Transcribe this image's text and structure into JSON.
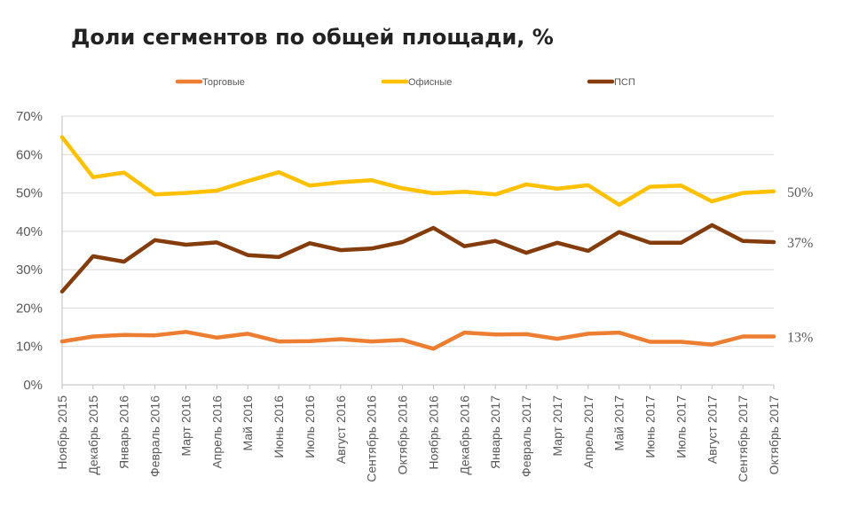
{
  "chart_data": {
    "type": "line",
    "title": "Доли сегментов по общей площади, %",
    "xlabel": "",
    "ylabel": "",
    "ylim": [
      0,
      70
    ],
    "yticks": [
      "0%",
      "10%",
      "20%",
      "30%",
      "40%",
      "50%",
      "60%",
      "70%"
    ],
    "grid": true,
    "legend": "top",
    "categories": [
      "Ноябрь 2015",
      "Декабрь 2015",
      "Январь 2016",
      "Февраль 2016",
      "Март 2016",
      "Апрель 2016",
      "Май 2016",
      "Июнь 2016",
      "Июль 2016",
      "Август 2016",
      "Сентябрь 2016",
      "Октябрь 2016",
      "Ноябрь 2016",
      "Декабрь 2016",
      "Январь 2017",
      "Февраль 2017",
      "Март 2017",
      "Апрель 2017",
      "Май 2017",
      "Июнь 2017",
      "Июль 2017",
      "Август 2017",
      "Сентябрь 2017",
      "Октябрь 2017"
    ],
    "series": [
      {
        "name": "Торговые",
        "color": "#ED7D31",
        "end_label": "13%",
        "values": [
          11.3,
          12.6,
          13.0,
          12.9,
          13.8,
          12.3,
          13.3,
          11.3,
          11.4,
          11.9,
          11.3,
          11.7,
          9.4,
          13.6,
          13.1,
          13.2,
          12.0,
          13.3,
          13.6,
          11.2,
          11.2,
          10.5,
          12.6,
          12.6
        ]
      },
      {
        "name": "Офисные",
        "color": "#FFC000",
        "end_label": "50%",
        "values": [
          64.5,
          54.1,
          55.3,
          49.6,
          50.0,
          50.6,
          53.1,
          55.4,
          51.9,
          52.8,
          53.3,
          51.2,
          49.9,
          50.3,
          49.6,
          52.2,
          51.1,
          52.0,
          46.9,
          51.6,
          51.9,
          47.8,
          50.0,
          50.4
        ]
      },
      {
        "name": "ПСП",
        "color": "#843C0C",
        "end_label": "37%",
        "values": [
          24.3,
          33.5,
          32.1,
          37.7,
          36.5,
          37.1,
          33.8,
          33.3,
          36.9,
          35.1,
          35.5,
          37.2,
          40.9,
          36.1,
          37.5,
          34.4,
          37.0,
          34.9,
          39.8,
          37.0,
          37.0,
          41.6,
          37.5,
          37.2
        ]
      }
    ]
  }
}
